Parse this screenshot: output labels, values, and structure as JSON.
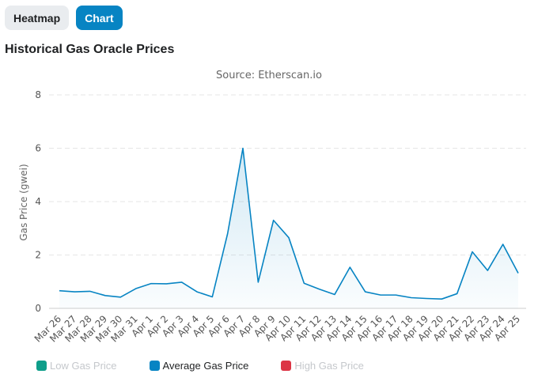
{
  "tabs": {
    "heatmap_label": "Heatmap",
    "chart_label": "Chart",
    "active": "chart"
  },
  "panel": {
    "title": "Historical Gas Oracle Prices"
  },
  "colors": {
    "accent": "#0784c3",
    "low": "#0f9e8a",
    "average": "#0784c3",
    "high": "#dc3545",
    "legend_hidden_text": "#c5c8cc"
  },
  "legend": {
    "items": [
      {
        "label": "Low Gas Price",
        "color": "#0f9e8a",
        "visible": false
      },
      {
        "label": "Average Gas Price",
        "color": "#0784c3",
        "visible": true
      },
      {
        "label": "High Gas Price",
        "color": "#dc3545",
        "visible": false
      }
    ]
  },
  "chart_data": {
    "type": "area",
    "title": "",
    "subtitle": "Source: Etherscan.io",
    "xlabel": "",
    "ylabel": "Gas Price (gwei)",
    "ylim": [
      0,
      8
    ],
    "yticks": [
      0,
      2,
      4,
      6,
      8
    ],
    "grid": true,
    "legend_position": "bottom-left",
    "categories": [
      "Mar 26",
      "Mar 27",
      "Mar 28",
      "Mar 29",
      "Mar 30",
      "Mar 31",
      "Apr 1",
      "Apr 2",
      "Apr 3",
      "Apr 4",
      "Apr 5",
      "Apr 6",
      "Apr 7",
      "Apr 8",
      "Apr 9",
      "Apr 10",
      "Apr 11",
      "Apr 12",
      "Apr 13",
      "Apr 14",
      "Apr 15",
      "Apr 16",
      "Apr 17",
      "Apr 18",
      "Apr 19",
      "Apr 20",
      "Apr 21",
      "Apr 22",
      "Apr 23",
      "Apr 24",
      "Apr 25"
    ],
    "series": [
      {
        "name": "Average Gas Price",
        "values": [
          0.66,
          0.62,
          0.64,
          0.48,
          0.42,
          0.74,
          0.93,
          0.92,
          0.98,
          0.62,
          0.43,
          2.8,
          6.0,
          0.98,
          3.3,
          2.65,
          0.94,
          0.72,
          0.52,
          1.54,
          0.62,
          0.5,
          0.5,
          0.4,
          0.37,
          0.35,
          0.55,
          2.12,
          1.42,
          2.4,
          1.32
        ]
      }
    ]
  }
}
